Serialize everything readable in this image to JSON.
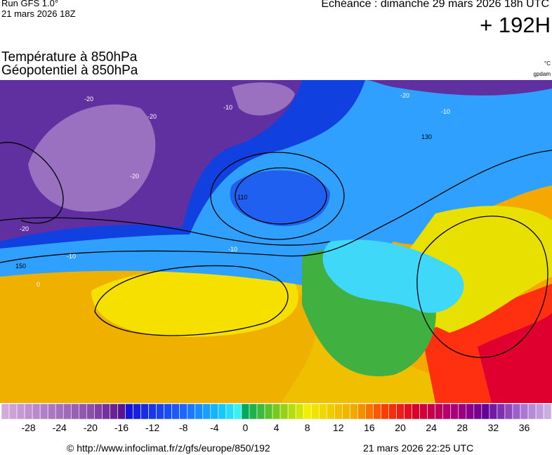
{
  "header": {
    "run": "Run GFS 1.0°",
    "run_date": "21 mars 2026 18Z",
    "forecast": "Echéance : dimanche 29 mars 2026 18h UTC",
    "lead": "+ 192H",
    "title_temp": "Température à 850hPa",
    "title_geo": "Géopotentiel à 850hPa",
    "unit_temp": "°C",
    "unit_geo": "gpdam"
  },
  "map": {
    "contour_labels": [
      "-20",
      "-20",
      "-20",
      "-10",
      "-20",
      "-20",
      "-10",
      "130",
      "110",
      "150",
      "-10",
      "-10",
      "0"
    ]
  },
  "colorbar": {
    "ticks": [
      -28,
      -24,
      -20,
      -16,
      -12,
      -8,
      -4,
      0,
      4,
      8,
      12,
      16,
      20,
      24,
      28,
      32,
      36
    ]
  },
  "footer": {
    "source": "© http://www.infoclimat.fr/z/gfs/europe/850/192",
    "generated": "21 mars 2026 22:25 UTC"
  }
}
